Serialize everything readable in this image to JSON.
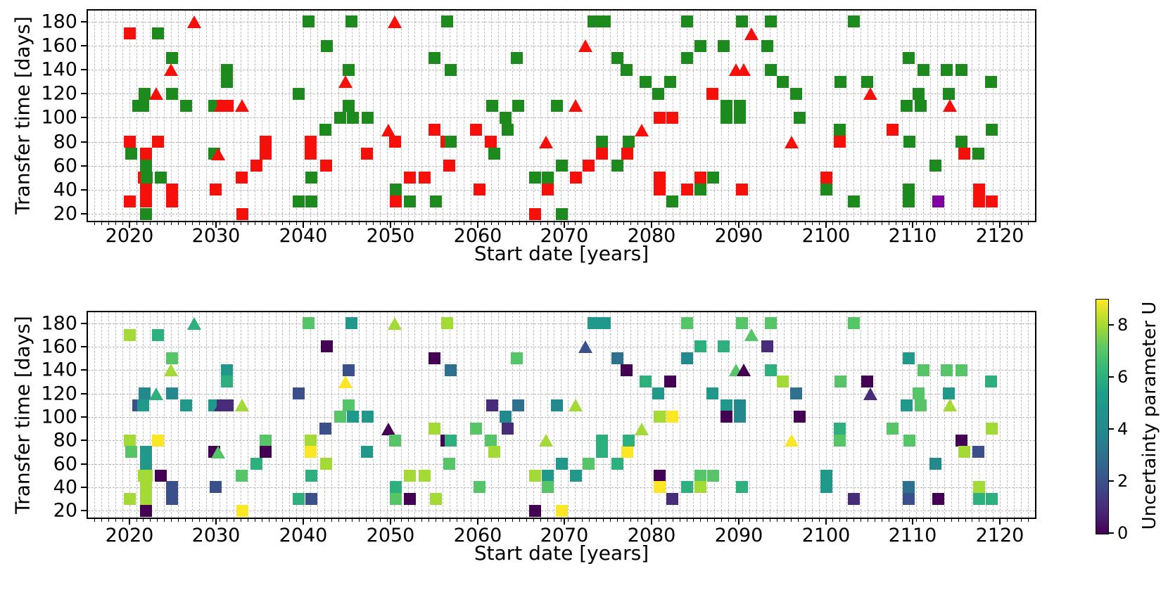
{
  "chart_data": {
    "type": "scatter",
    "title": "",
    "subplots": [
      {
        "id": "top",
        "xlabel": "Start date [years]",
        "ylabel": "Transfer time [days]",
        "color_encoding": "category (green / red / purple markers)"
      },
      {
        "id": "bottom",
        "xlabel": "Start date [years]",
        "ylabel": "Transfer time [days]",
        "color_encoding": "Uncertainty parameter U (viridis colormap)"
      }
    ],
    "axes": {
      "xlim": [
        2015.1,
        2124.2
      ],
      "ylim": [
        13,
        190.5
      ],
      "xticks": [
        2020,
        2030,
        2040,
        2050,
        2060,
        2070,
        2080,
        2090,
        2100,
        2110,
        2120
      ],
      "yticks": [
        20,
        40,
        60,
        80,
        100,
        120,
        140,
        160,
        180
      ],
      "x_minor_step": 0.8,
      "grid": true,
      "grid_style": "dashed"
    },
    "colorbar": {
      "label": "Uncertainty parameter U",
      "ticks": [
        0,
        2,
        4,
        6,
        8
      ],
      "vmin": 0,
      "vmax": 9,
      "colormap": "viridis"
    },
    "colors": {
      "category_green": "#1d8a1d",
      "category_red": "#f7100a",
      "category_purple": "#8000a0",
      "grid_gray": "#bdbdbd"
    },
    "marker_legend": {
      "s": "square",
      "t": "triangle-up"
    },
    "points_format": [
      "start_year",
      "transfer_days",
      "marker",
      "category",
      "uncertainty_U"
    ],
    "points": [
      [
        2020.1,
        170,
        "s",
        "r",
        8
      ],
      [
        2020.1,
        80,
        "s",
        "r",
        8
      ],
      [
        2020.2,
        70,
        "s",
        "g",
        7
      ],
      [
        2020.1,
        30,
        "s",
        "r",
        8
      ],
      [
        2021.0,
        110,
        "s",
        "g",
        2
      ],
      [
        2021.6,
        110,
        "s",
        "g",
        5
      ],
      [
        2021.8,
        120,
        "s",
        "g",
        4
      ],
      [
        2021.9,
        70,
        "s",
        "r",
        5
      ],
      [
        2021.9,
        60,
        "s",
        "g",
        5
      ],
      [
        2021.7,
        50,
        "s",
        "r",
        8
      ],
      [
        2022.0,
        50,
        "s",
        "g",
        8
      ],
      [
        2021.9,
        40,
        "s",
        "r",
        8
      ],
      [
        2021.9,
        30,
        "s",
        "r",
        8
      ],
      [
        2021.9,
        20,
        "s",
        "g",
        0
      ],
      [
        2023.3,
        170,
        "s",
        "g",
        6
      ],
      [
        2023.1,
        120,
        "t",
        "r",
        6
      ],
      [
        2023.3,
        80,
        "s",
        "r",
        9
      ],
      [
        2023.6,
        50,
        "s",
        "g",
        0
      ],
      [
        2024.9,
        150,
        "s",
        "g",
        7
      ],
      [
        2024.8,
        140,
        "t",
        "r",
        8
      ],
      [
        2024.9,
        120,
        "s",
        "g",
        4
      ],
      [
        2024.9,
        40,
        "s",
        "r",
        2
      ],
      [
        2024.9,
        30,
        "s",
        "r",
        2
      ],
      [
        2026.5,
        110,
        "s",
        "g",
        5
      ],
      [
        2027.5,
        180,
        "t",
        "r",
        6
      ],
      [
        2029.8,
        110,
        "s",
        "g",
        5
      ],
      [
        2030.5,
        110,
        "t",
        "r",
        1
      ],
      [
        2030.7,
        110,
        "s",
        "r",
        1
      ],
      [
        2031.3,
        110,
        "s",
        "r",
        1
      ],
      [
        2033.0,
        110,
        "t",
        "r",
        8
      ],
      [
        2029.8,
        70,
        "s",
        "g",
        0
      ],
      [
        2030.2,
        70,
        "t",
        "r",
        7
      ],
      [
        2029.9,
        40,
        "s",
        "r",
        2
      ],
      [
        2031.2,
        140,
        "s",
        "g",
        5
      ],
      [
        2031.2,
        130,
        "s",
        "g",
        6
      ],
      [
        2032.9,
        50,
        "s",
        "r",
        7
      ],
      [
        2033.0,
        20,
        "s",
        "r",
        9
      ],
      [
        2034.6,
        60,
        "s",
        "r",
        6
      ],
      [
        2035.7,
        80,
        "s",
        "r",
        7
      ],
      [
        2035.7,
        70,
        "s",
        "r",
        0
      ],
      [
        2039.5,
        120,
        "s",
        "g",
        2
      ],
      [
        2039.5,
        30,
        "s",
        "g",
        6
      ],
      [
        2040.6,
        180,
        "s",
        "g",
        7
      ],
      [
        2040.8,
        80,
        "s",
        "r",
        8
      ],
      [
        2040.8,
        70,
        "s",
        "r",
        9
      ],
      [
        2040.9,
        50,
        "s",
        "g",
        6
      ],
      [
        2040.9,
        30,
        "s",
        "g",
        2
      ],
      [
        2042.7,
        160,
        "s",
        "g",
        0
      ],
      [
        2042.5,
        90,
        "s",
        "g",
        2
      ],
      [
        2042.6,
        60,
        "s",
        "r",
        8
      ],
      [
        2044.8,
        130,
        "t",
        "r",
        9
      ],
      [
        2045.2,
        140,
        "s",
        "g",
        2
      ],
      [
        2045.2,
        110,
        "s",
        "g",
        7
      ],
      [
        2044.2,
        100,
        "s",
        "g",
        7
      ],
      [
        2045.7,
        100,
        "s",
        "g",
        5
      ],
      [
        2047.4,
        100,
        "s",
        "g",
        5
      ],
      [
        2045.5,
        180,
        "s",
        "g",
        5
      ],
      [
        2047.3,
        70,
        "s",
        "r",
        5
      ],
      [
        2049.8,
        90,
        "t",
        "r",
        0
      ],
      [
        2050.5,
        180,
        "t",
        "r",
        8
      ],
      [
        2050.5,
        80,
        "s",
        "r",
        7
      ],
      [
        2050.6,
        40,
        "s",
        "g",
        6
      ],
      [
        2050.6,
        30,
        "s",
        "r",
        7
      ],
      [
        2052.2,
        50,
        "s",
        "r",
        8
      ],
      [
        2052.2,
        30,
        "s",
        "g",
        0
      ],
      [
        2053.9,
        50,
        "s",
        "r",
        8
      ],
      [
        2055.1,
        150,
        "s",
        "g",
        0
      ],
      [
        2055.1,
        90,
        "s",
        "r",
        8
      ],
      [
        2055.2,
        30,
        "s",
        "g",
        8
      ],
      [
        2056.5,
        180,
        "s",
        "g",
        8
      ],
      [
        2056.9,
        140,
        "s",
        "g",
        3
      ],
      [
        2056.4,
        80,
        "s",
        "r",
        0
      ],
      [
        2056.9,
        80,
        "s",
        "g",
        6
      ],
      [
        2056.8,
        60,
        "s",
        "r",
        7
      ],
      [
        2059.8,
        90,
        "s",
        "r",
        7
      ],
      [
        2060.2,
        40,
        "s",
        "r",
        7
      ],
      [
        2061.7,
        110,
        "s",
        "g",
        1
      ],
      [
        2061.5,
        80,
        "s",
        "r",
        7
      ],
      [
        2061.9,
        70,
        "s",
        "g",
        8
      ],
      [
        2063.2,
        100,
        "s",
        "g",
        4
      ],
      [
        2063.5,
        90,
        "s",
        "g",
        1
      ],
      [
        2064.5,
        150,
        "s",
        "g",
        7
      ],
      [
        2064.7,
        110,
        "s",
        "g",
        3
      ],
      [
        2066.6,
        50,
        "s",
        "g",
        8
      ],
      [
        2066.6,
        20,
        "s",
        "r",
        0
      ],
      [
        2067.9,
        80,
        "t",
        "r",
        8
      ],
      [
        2068.1,
        50,
        "s",
        "g",
        5
      ],
      [
        2068.1,
        40,
        "s",
        "r",
        7
      ],
      [
        2069.1,
        110,
        "s",
        "g",
        4
      ],
      [
        2069.7,
        60,
        "s",
        "g",
        5
      ],
      [
        2069.7,
        20,
        "s",
        "g",
        9
      ],
      [
        2071.3,
        110,
        "t",
        "r",
        8
      ],
      [
        2071.3,
        50,
        "s",
        "r",
        5
      ],
      [
        2072.4,
        160,
        "t",
        "r",
        2
      ],
      [
        2072.8,
        60,
        "s",
        "r",
        7
      ],
      [
        2073.3,
        180,
        "s",
        "g",
        5
      ],
      [
        2074.6,
        180,
        "s",
        "g",
        5
      ],
      [
        2074.3,
        80,
        "s",
        "g",
        6
      ],
      [
        2074.3,
        70,
        "s",
        "r",
        6
      ],
      [
        2076.1,
        150,
        "s",
        "g",
        3
      ],
      [
        2076.1,
        60,
        "s",
        "g",
        6
      ],
      [
        2077.1,
        140,
        "s",
        "g",
        0
      ],
      [
        2077.2,
        70,
        "s",
        "r",
        9
      ],
      [
        2077.4,
        80,
        "s",
        "g",
        6
      ],
      [
        2078.9,
        90,
        "t",
        "r",
        8
      ],
      [
        2079.3,
        130,
        "s",
        "g",
        6
      ],
      [
        2080.8,
        120,
        "s",
        "g",
        5
      ],
      [
        2080.9,
        100,
        "s",
        "r",
        8
      ],
      [
        2080.9,
        50,
        "s",
        "r",
        0
      ],
      [
        2080.9,
        40,
        "s",
        "r",
        9
      ],
      [
        2082.1,
        130,
        "s",
        "g",
        0
      ],
      [
        2082.4,
        100,
        "s",
        "r",
        9
      ],
      [
        2082.4,
        30,
        "s",
        "g",
        1
      ],
      [
        2084.1,
        180,
        "s",
        "g",
        7
      ],
      [
        2084.1,
        150,
        "s",
        "g",
        4
      ],
      [
        2084.1,
        40,
        "s",
        "r",
        6
      ],
      [
        2085.6,
        160,
        "s",
        "g",
        6
      ],
      [
        2085.6,
        50,
        "s",
        "r",
        7
      ],
      [
        2085.6,
        40,
        "s",
        "g",
        8
      ],
      [
        2087.0,
        120,
        "s",
        "r",
        5
      ],
      [
        2087.1,
        50,
        "s",
        "g",
        7
      ],
      [
        2088.3,
        160,
        "s",
        "g",
        6
      ],
      [
        2088.6,
        110,
        "s",
        "g",
        5
      ],
      [
        2088.6,
        100,
        "s",
        "g",
        0
      ],
      [
        2089.7,
        140,
        "t",
        "r",
        7
      ],
      [
        2090.1,
        110,
        "s",
        "g",
        4
      ],
      [
        2090.1,
        100,
        "s",
        "g",
        4
      ],
      [
        2090.4,
        180,
        "s",
        "g",
        7
      ],
      [
        2090.4,
        40,
        "s",
        "r",
        6
      ],
      [
        2090.6,
        140,
        "t",
        "r",
        0
      ],
      [
        2091.5,
        170,
        "t",
        "r",
        7
      ],
      [
        2093.3,
        160,
        "s",
        "g",
        1
      ],
      [
        2093.7,
        180,
        "s",
        "g",
        7
      ],
      [
        2093.7,
        140,
        "s",
        "g",
        6
      ],
      [
        2095.1,
        130,
        "s",
        "g",
        8
      ],
      [
        2096.1,
        80,
        "t",
        "r",
        9
      ],
      [
        2096.6,
        120,
        "s",
        "g",
        3
      ],
      [
        2097.0,
        100,
        "s",
        "g",
        0
      ],
      [
        2100.1,
        50,
        "s",
        "r",
        5
      ],
      [
        2100.1,
        40,
        "s",
        "g",
        5
      ],
      [
        2101.6,
        90,
        "s",
        "g",
        6
      ],
      [
        2101.6,
        80,
        "s",
        "r",
        7
      ],
      [
        2101.7,
        130,
        "s",
        "g",
        7
      ],
      [
        2103.2,
        180,
        "s",
        "g",
        7
      ],
      [
        2103.2,
        30,
        "s",
        "g",
        1
      ],
      [
        2104.8,
        130,
        "s",
        "g",
        0
      ],
      [
        2105.1,
        120,
        "t",
        "r",
        1
      ],
      [
        2107.7,
        90,
        "s",
        "r",
        7
      ],
      [
        2109.3,
        110,
        "s",
        "g",
        5
      ],
      [
        2109.5,
        150,
        "s",
        "g",
        5
      ],
      [
        2109.6,
        80,
        "s",
        "g",
        7
      ],
      [
        2109.5,
        40,
        "s",
        "g",
        3
      ],
      [
        2109.5,
        30,
        "s",
        "g",
        2
      ],
      [
        2110.7,
        120,
        "s",
        "g",
        7
      ],
      [
        2110.9,
        110,
        "s",
        "g",
        7
      ],
      [
        2111.2,
        140,
        "s",
        "g",
        7
      ],
      [
        2112.6,
        60,
        "s",
        "g",
        4
      ],
      [
        2112.9,
        30,
        "s",
        "p",
        0
      ],
      [
        2113.9,
        140,
        "s",
        "g",
        7
      ],
      [
        2114.1,
        120,
        "s",
        "g",
        5
      ],
      [
        2114.3,
        110,
        "t",
        "r",
        8
      ],
      [
        2115.6,
        140,
        "s",
        "g",
        7
      ],
      [
        2115.6,
        80,
        "s",
        "g",
        0
      ],
      [
        2115.9,
        70,
        "s",
        "r",
        8
      ],
      [
        2117.5,
        70,
        "s",
        "g",
        2
      ],
      [
        2117.6,
        40,
        "s",
        "r",
        8
      ],
      [
        2117.6,
        30,
        "s",
        "r",
        6
      ],
      [
        2119.0,
        130,
        "s",
        "g",
        6
      ],
      [
        2119.1,
        90,
        "s",
        "g",
        8
      ],
      [
        2119.1,
        30,
        "s",
        "r",
        6
      ]
    ]
  }
}
